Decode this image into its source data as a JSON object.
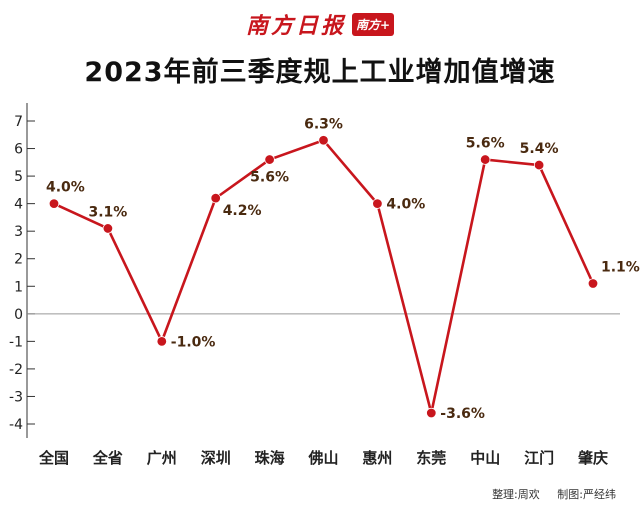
{
  "logo": {
    "name": "南方日报",
    "stamp": "南方+"
  },
  "title": "2023年前三季度规上工业增加值增速",
  "credits": {
    "editor": "整理:周欢",
    "designer": "制图:严经纬"
  },
  "colors": {
    "line": "#c8161d",
    "point": "#c8161d",
    "label": "#4a2a10",
    "axis": "#333333",
    "zero": "#999999"
  },
  "chart_data": {
    "type": "line",
    "title": "2023年前三季度规上工业增加值增速",
    "xlabel": "",
    "ylabel": "",
    "categories": [
      "全国",
      "全省",
      "广州",
      "深圳",
      "珠海",
      "佛山",
      "惠州",
      "东莞",
      "中山",
      "江门",
      "肇庆"
    ],
    "values": [
      4.0,
      3.1,
      -1.0,
      4.2,
      5.6,
      6.3,
      4.0,
      -3.6,
      5.6,
      5.4,
      1.1
    ],
    "value_labels": [
      "4.0%",
      "3.1%",
      "-1.0%",
      "4.2%",
      "5.6%",
      "6.3%",
      "4.0%",
      "-3.6%",
      "5.6%",
      "5.4%",
      "1.1%"
    ],
    "y_ticks": [
      7,
      6,
      5,
      4,
      3,
      2,
      1,
      0,
      -1,
      -2,
      -3,
      -4
    ],
    "ylim": [
      -4,
      7
    ],
    "grid": false,
    "legend": "none"
  }
}
